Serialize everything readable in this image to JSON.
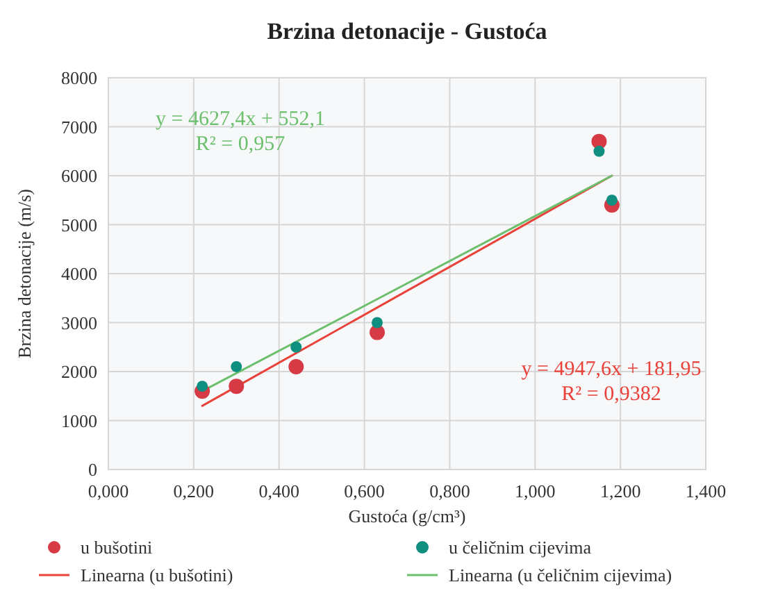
{
  "chart_data": {
    "type": "scatter",
    "title": "Brzina detonacije - Gustoća",
    "xlabel": "Gustoća (g/cm³)",
    "ylabel": "Brzina detonacije (m/s)",
    "xlim": [
      0,
      1.4
    ],
    "xticks": [
      {
        "value": 0,
        "label": "0,000"
      },
      {
        "value": 0.2,
        "label": "0,200"
      },
      {
        "value": 0.4,
        "label": "0,400"
      },
      {
        "value": 0.6,
        "label": "0,600"
      },
      {
        "value": 0.8,
        "label": "0,800"
      },
      {
        "value": 1,
        "label": "1,000"
      },
      {
        "value": 1.2,
        "label": "1,200"
      },
      {
        "value": 1.4,
        "label": "1,400"
      }
    ],
    "ylim": [
      0,
      8000
    ],
    "yticks": [
      0,
      1000,
      2000,
      3000,
      4000,
      5000,
      6000,
      7000,
      8000
    ],
    "grid": true,
    "legend": "bottom",
    "marker": "circle",
    "series": [
      {
        "name": "u bušotini",
        "color": "#d63a45",
        "x": [
          0.22,
          0.3,
          0.44,
          0.63,
          1.15,
          1.18
        ],
        "values": [
          1600,
          1700,
          2100,
          2800,
          6700,
          5400
        ]
      },
      {
        "name": "u čeličnim cijevima",
        "color": "#0e8f80",
        "x": [
          0.22,
          0.3,
          0.44,
          0.63,
          1.15,
          1.18
        ],
        "values": [
          1700,
          2100,
          2500,
          3000,
          6500,
          5500
        ]
      },
      {
        "name": "Linearna (u bušotini)",
        "type": "line",
        "marker": "none",
        "color": "#e8423a",
        "x": [
          0.22,
          1.18
        ],
        "values": [
          1300,
          6000
        ]
      },
      {
        "name": "Linearna (u čeličnim cijevima)",
        "type": "line",
        "marker": "none",
        "color": "#6cbf6c",
        "x": [
          0.22,
          1.18
        ],
        "values": [
          1600,
          6000
        ]
      }
    ],
    "annotations": [
      "y = 4627,4x + 552,1",
      "R² = 0,957",
      "y = 4947,6x + 181,95",
      "R² = 0,9382"
    ]
  }
}
